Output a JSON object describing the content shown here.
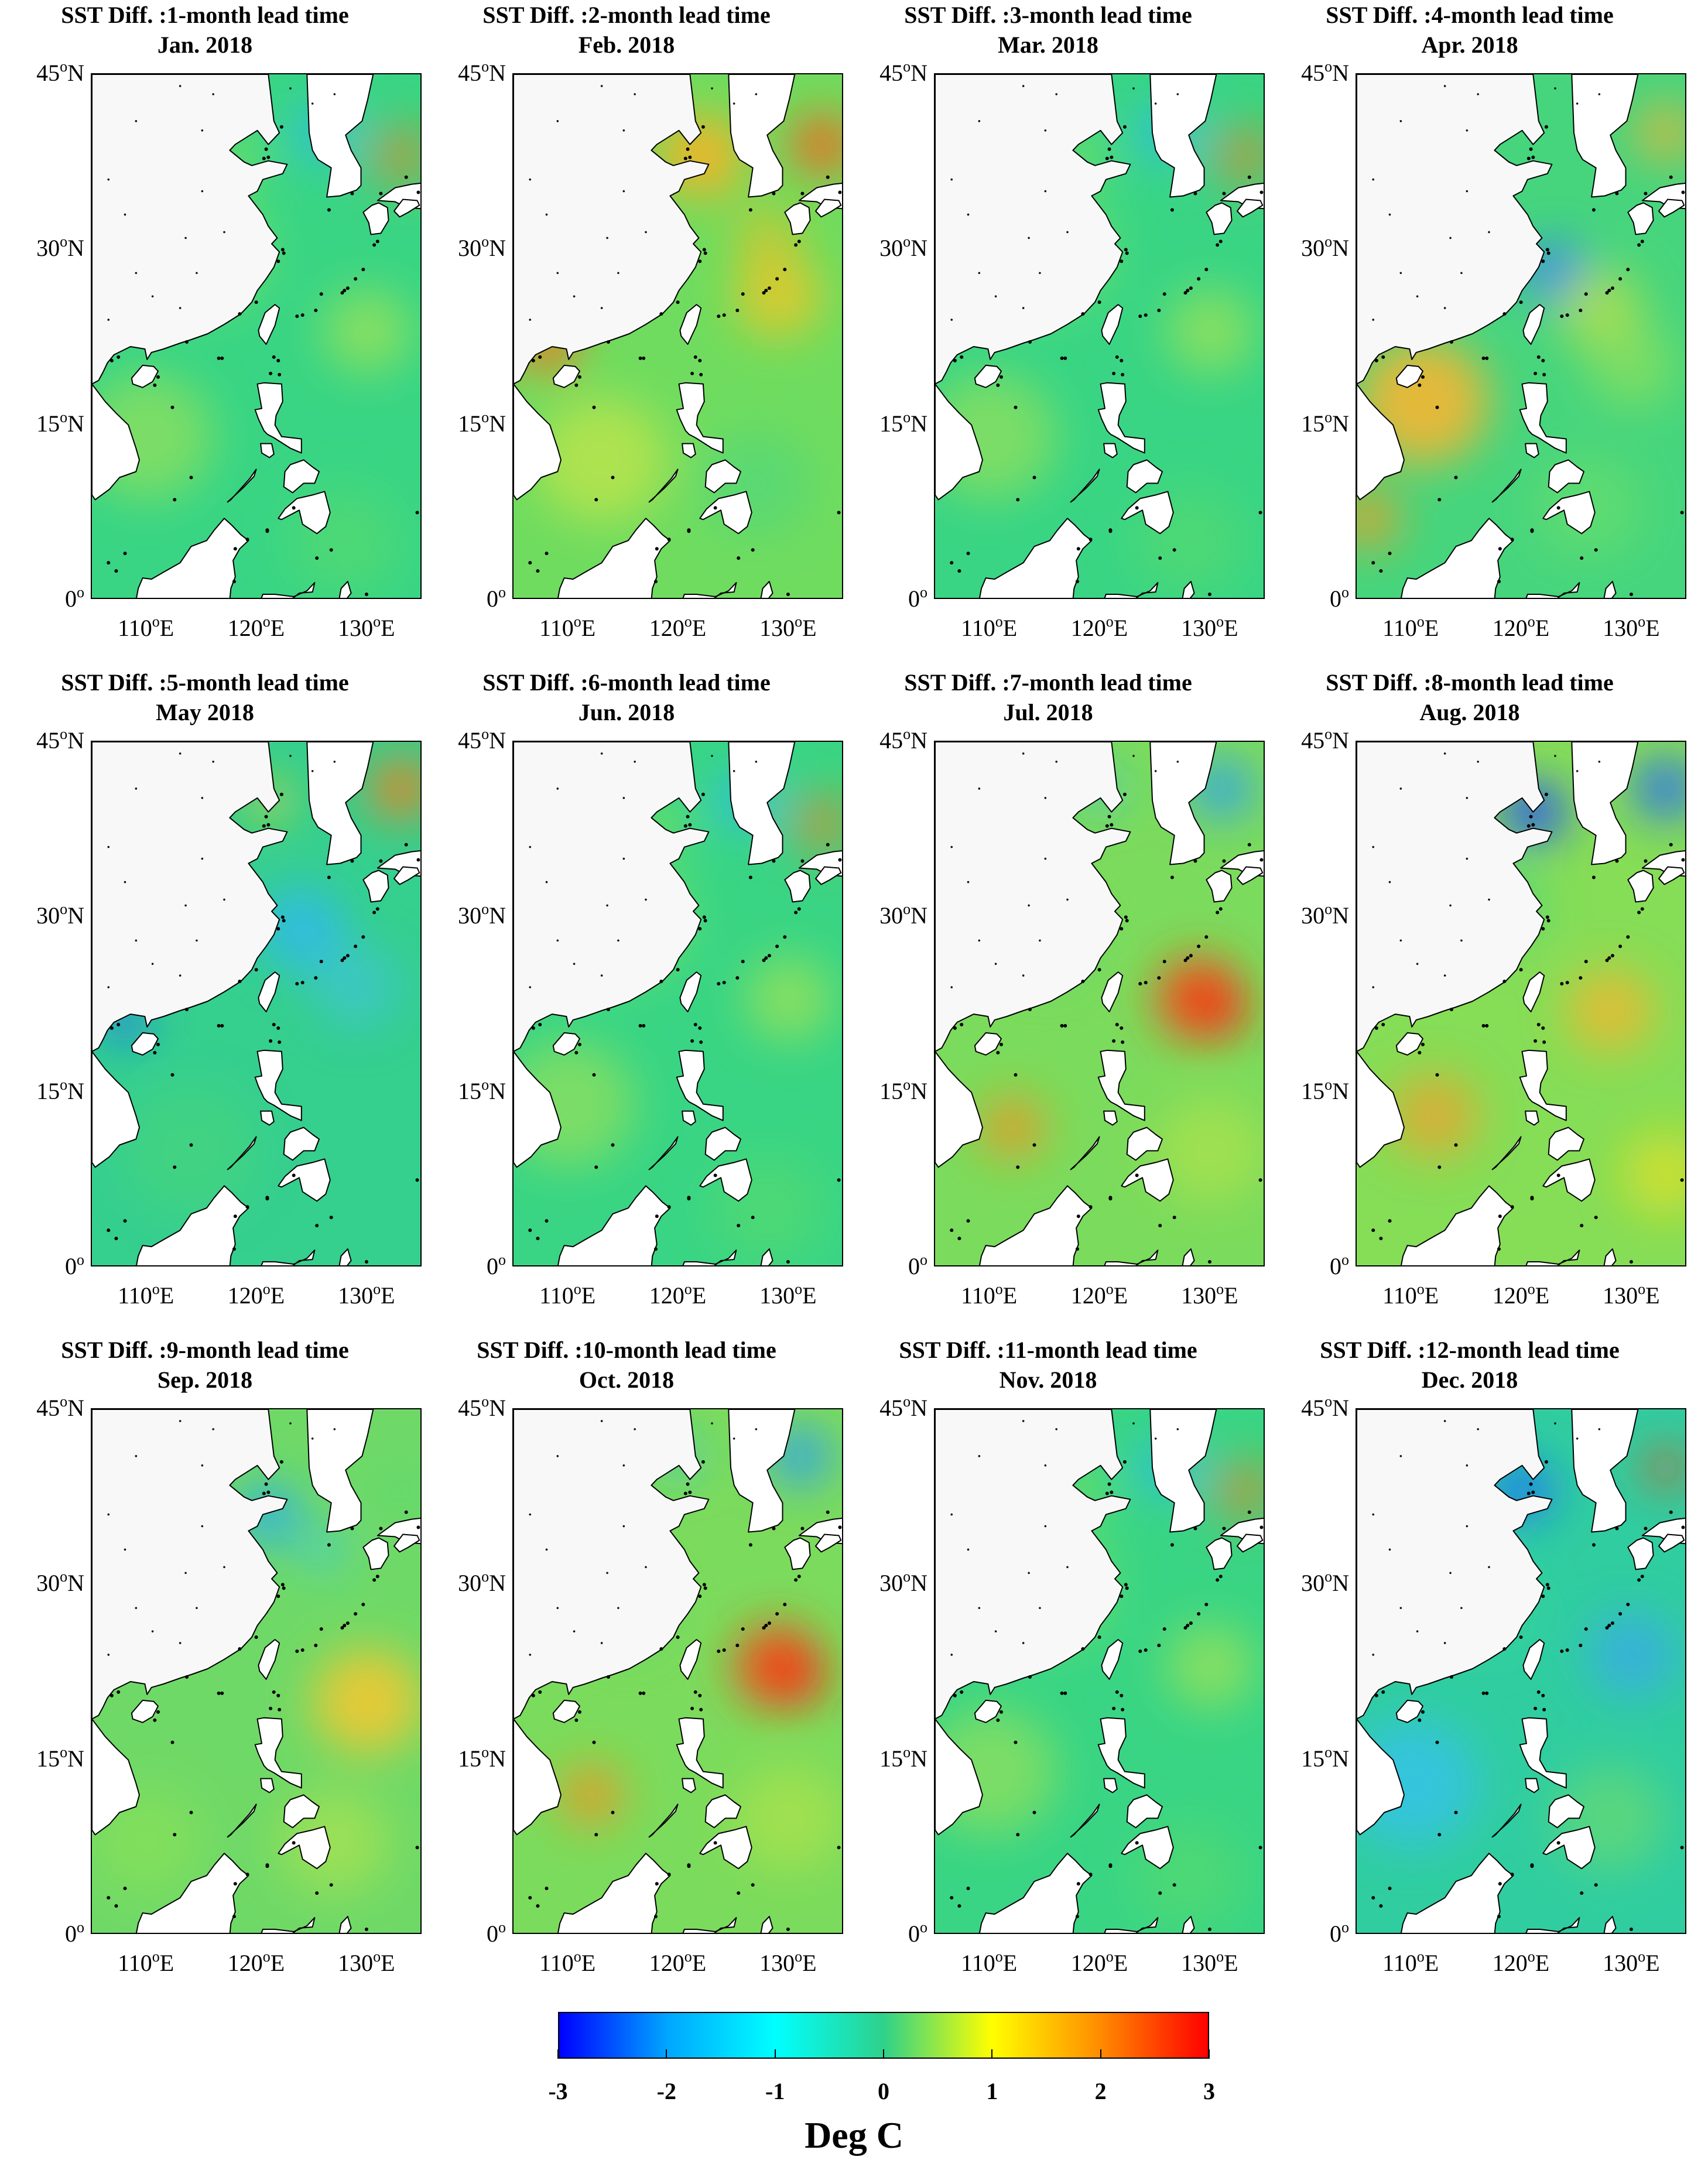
{
  "figure": {
    "panels": [
      {
        "title": "SST Diff. :1-month lead time",
        "subtitle": "Jan. 2018",
        "palette": "neutral-green"
      },
      {
        "title": "SST Diff. :2-month lead time",
        "subtitle": "Feb. 2018",
        "palette": "warm-north"
      },
      {
        "title": "SST Diff. :3-month lead time",
        "subtitle": "Mar. 2018",
        "palette": "neutral-green"
      },
      {
        "title": "SST Diff. :4-month lead time",
        "subtitle": "Apr. 2018",
        "palette": "warm-west"
      },
      {
        "title": "SST Diff. :5-month lead time",
        "subtitle": "May 2018",
        "palette": "cool-center"
      },
      {
        "title": "SST Diff. :6-month lead time",
        "subtitle": "Jun. 2018",
        "palette": "neutral-green"
      },
      {
        "title": "SST Diff. :7-month lead time",
        "subtitle": "Jul. 2018",
        "palette": "hot-center"
      },
      {
        "title": "SST Diff. :8-month lead time",
        "subtitle": "Aug. 2018",
        "palette": "cold-north"
      },
      {
        "title": "SST Diff. :9-month lead time",
        "subtitle": "Sep. 2018",
        "palette": "warm-east"
      },
      {
        "title": "SST Diff. :10-month lead time",
        "subtitle": "Oct. 2018",
        "palette": "hot-center"
      },
      {
        "title": "SST Diff. :11-month lead time",
        "subtitle": "Nov. 2018",
        "palette": "neutral-green"
      },
      {
        "title": "SST Diff. :12-month lead time",
        "subtitle": "Dec. 2018",
        "palette": "cool-all"
      }
    ],
    "lat_ticks": [
      "45",
      "30",
      "15",
      "0"
    ],
    "lat_suffix": "N",
    "lat_zero": "0",
    "lon_ticks": [
      "110",
      "120",
      "130"
    ],
    "lon_suffix": "E",
    "deg_mark": "o",
    "colorbar": {
      "min": -3,
      "max": 3,
      "ticks": [
        "-3",
        "-2",
        "-1",
        "0",
        "1",
        "2",
        "3"
      ],
      "label": "Deg C",
      "colors": [
        "#0000ff",
        "#00a6ff",
        "#00ffff",
        "#2ed18a",
        "#ffff00",
        "#ff8c00",
        "#ff0000"
      ]
    }
  }
}
